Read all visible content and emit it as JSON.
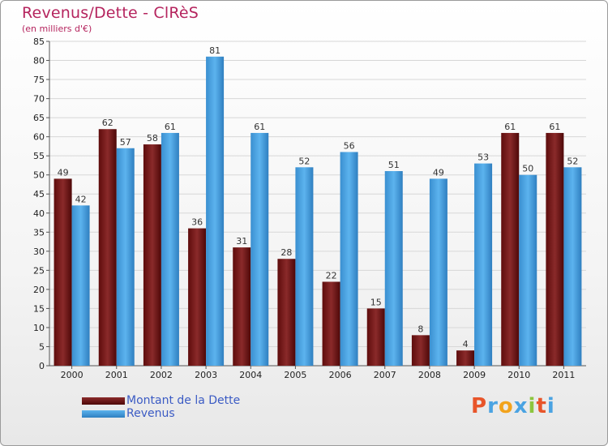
{
  "chart_data": {
    "type": "bar",
    "title": "Revenus/Dette - ClRèS",
    "subtitle": "(en milliers d'€)",
    "categories": [
      "2000",
      "2001",
      "2002",
      "2003",
      "2004",
      "2005",
      "2006",
      "2007",
      "2008",
      "2009",
      "2010",
      "2011"
    ],
    "series": [
      {
        "name": "Montant de la Dette",
        "color": "#7a1c1c",
        "values": [
          49,
          62,
          58,
          36,
          31,
          28,
          22,
          15,
          8,
          4,
          61,
          61
        ]
      },
      {
        "name": "Revenus",
        "color": "#4aa3e2",
        "values": [
          42,
          57,
          61,
          81,
          61,
          52,
          56,
          51,
          49,
          53,
          50,
          52
        ]
      }
    ],
    "yticks": [
      0,
      5,
      10,
      15,
      20,
      25,
      30,
      35,
      40,
      45,
      50,
      55,
      60,
      65,
      70,
      75,
      80,
      85
    ],
    "ylim": [
      0,
      85
    ],
    "grid": true,
    "legend_position": "bottom-left"
  },
  "logo": {
    "letters": [
      "P",
      "r",
      "o",
      "x",
      "i",
      "t",
      "i"
    ],
    "colors": [
      "#e8552a",
      "#4aa3e2",
      "#f2a31c",
      "#4aa3e2",
      "#8cc63f",
      "#e8552a",
      "#4aa3e2"
    ]
  }
}
